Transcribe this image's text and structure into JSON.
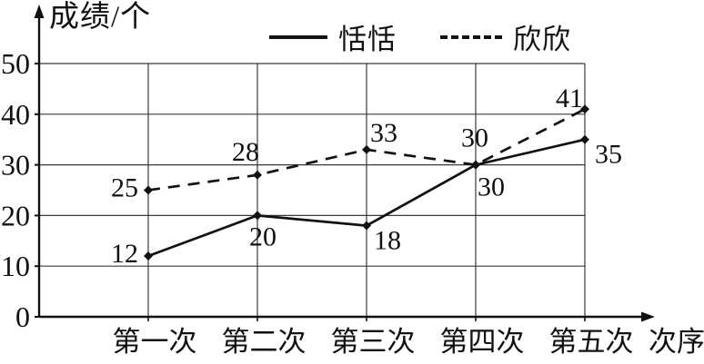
{
  "chart_data": {
    "type": "line",
    "title": "成绩/个",
    "x_axis_label": "次序",
    "categories": [
      "第一次",
      "第二次",
      "第三次",
      "第四次",
      "第五次"
    ],
    "series": [
      {
        "name": "恬恬",
        "line_style": "solid",
        "marker": "diamond",
        "values": [
          12,
          20,
          18,
          30,
          35
        ],
        "label_offsets": [
          [
            -26,
            -3
          ],
          [
            6,
            23
          ],
          [
            23,
            16
          ],
          [
            17,
            24
          ],
          [
            26,
            16
          ]
        ]
      },
      {
        "name": "欣欣",
        "line_style": "dashed",
        "marker": "diamond",
        "values": [
          25,
          28,
          33,
          30,
          41
        ],
        "label_offsets": [
          [
            -26,
            -3
          ],
          [
            -13,
            -26
          ],
          [
            19,
            -19
          ],
          [
            -1,
            -30
          ],
          [
            -17,
            -12
          ]
        ]
      }
    ],
    "y_ticks": [
      0,
      10,
      20,
      30,
      40,
      50
    ],
    "ylim": [
      0,
      50
    ],
    "grid": true,
    "legend_position": "top",
    "line_color": "#111111",
    "grid_color": "#3a3a3a"
  }
}
